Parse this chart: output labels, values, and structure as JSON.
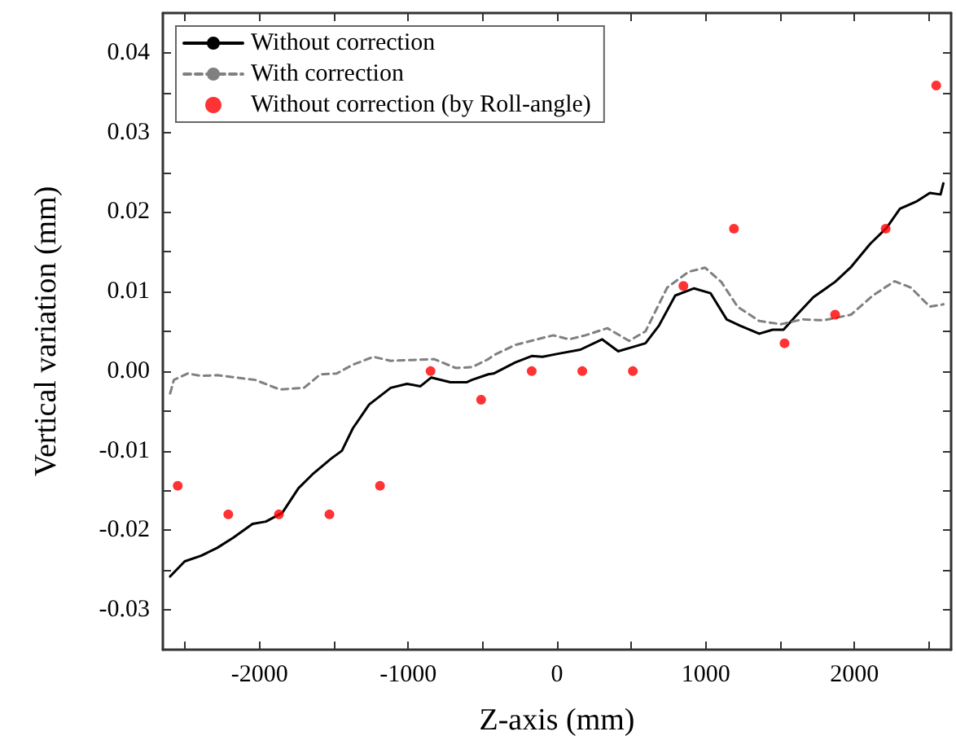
{
  "chart_data": {
    "type": "line",
    "xlabel": "Z-axis (mm)",
    "ylabel": "Vertical variation (mm)",
    "xlim": [
      -2650,
      2650
    ],
    "xticks": [
      {
        "value": -2500,
        "label": null
      },
      -2000,
      {
        "value": -1500,
        "label": null
      },
      -1000,
      {
        "value": -500,
        "label": null
      },
      0,
      {
        "value": 500,
        "label": null
      },
      1000,
      {
        "value": 1500,
        "label": null
      },
      2000,
      {
        "value": 2500,
        "label": null
      }
    ],
    "ylim": [
      -0.035,
      0.045
    ],
    "yticks": [
      {
        "value": -0.03,
        "label": "-0.03"
      },
      {
        "value": -0.025,
        "label": null
      },
      {
        "value": -0.02,
        "label": "-0.02"
      },
      {
        "value": -0.015,
        "label": null
      },
      {
        "value": -0.01,
        "label": "-0.01"
      },
      {
        "value": -0.005,
        "label": null
      },
      {
        "value": 0,
        "label": "0.00"
      },
      {
        "value": 0.005,
        "label": null
      },
      {
        "value": 0.01,
        "label": "0.01"
      },
      {
        "value": 0.015,
        "label": null
      },
      {
        "value": 0.02,
        "label": "0.02"
      },
      {
        "value": 0.025,
        "label": null
      },
      {
        "value": 0.03,
        "label": "0.03"
      },
      {
        "value": 0.035,
        "label": null
      },
      {
        "value": 0.04,
        "label": "0.04"
      }
    ],
    "grid": false,
    "legend": "top left",
    "series": [
      {
        "name": "Without correction",
        "color": "#000000",
        "line_style": "solid",
        "marker": "none",
        "x": [
          -2601,
          -2503,
          -2393,
          -2284,
          -2175,
          -2047,
          -1957,
          -1847,
          -1738,
          -1646,
          -1519,
          -1446,
          -1373,
          -1263,
          -1118,
          -1009,
          -918,
          -845,
          -717,
          -608,
          -572,
          -462,
          -426,
          -280,
          -170,
          -97,
          11,
          157,
          303,
          412,
          521,
          595,
          685,
          795,
          922,
          1032,
          1141,
          1232,
          1360,
          1450,
          1523,
          1614,
          1724,
          1869,
          1978,
          2106,
          2216,
          2306,
          2415,
          2507,
          2579,
          2598
        ],
        "values": [
          -0.0258,
          -0.0239,
          -0.0232,
          -0.0222,
          -0.0209,
          -0.0192,
          -0.0189,
          -0.0178,
          -0.0147,
          -0.013,
          -0.011,
          -0.01,
          -0.0072,
          -0.0042,
          -0.0021,
          -0.0016,
          -0.0019,
          -0.0008,
          -0.0014,
          -0.0014,
          -0.0011,
          -0.0004,
          -0.0003,
          0.0011,
          0.0019,
          0.0018,
          0.0022,
          0.0027,
          0.004,
          0.0025,
          0.0031,
          0.0035,
          0.0057,
          0.0095,
          0.0104,
          0.0098,
          0.0065,
          0.0057,
          0.0047,
          0.0052,
          0.0052,
          0.0071,
          0.0093,
          0.0112,
          0.0131,
          0.016,
          0.018,
          0.0204,
          0.0213,
          0.0224,
          0.0222,
          0.0236
        ]
      },
      {
        "name": "With correction",
        "color": "#808080",
        "line_style": "dashed",
        "marker": "none",
        "x": [
          -2601,
          -2576,
          -2484,
          -2393,
          -2284,
          -2029,
          -1865,
          -1701,
          -1591,
          -1482,
          -1373,
          -1235,
          -1118,
          -972,
          -826,
          -681,
          -572,
          -462,
          -426,
          -280,
          -134,
          -25,
          81,
          190,
          339,
          485,
          595,
          741,
          886,
          996,
          1105,
          1214,
          1360,
          1505,
          1651,
          1796,
          1978,
          2124,
          2270,
          2379,
          2507,
          2598
        ],
        "values": [
          -0.0028,
          -0.0011,
          -0.0003,
          -0.0006,
          -0.0005,
          -0.0011,
          -0.0023,
          -0.0021,
          -0.0004,
          -0.0003,
          0.0008,
          0.0018,
          0.0013,
          0.0014,
          0.0015,
          0.0004,
          0.0005,
          0.0015,
          0.002,
          0.0033,
          0.004,
          0.0045,
          0.004,
          0.0045,
          0.0054,
          0.0038,
          0.005,
          0.0105,
          0.0125,
          0.013,
          0.0112,
          0.0081,
          0.0063,
          0.0059,
          0.0065,
          0.0064,
          0.0071,
          0.0095,
          0.0113,
          0.0105,
          0.0081,
          0.0084
        ]
      },
      {
        "name": "Without correction (by Roll-angle)",
        "type": "scatter",
        "color": "#ff0000",
        "marker": "circle",
        "x": [
          -2550,
          -2210,
          -1870,
          -1530,
          -1190,
          -850,
          -510,
          -170,
          170,
          510,
          850,
          1190,
          1530,
          1870,
          2210,
          2550
        ],
        "values": [
          -0.0144,
          -0.018,
          -0.018,
          -0.018,
          -0.0144,
          0,
          -0.0036,
          0,
          0,
          0,
          0.0107,
          0.0179,
          0.0035,
          0.0071,
          0.0179,
          0.0359
        ]
      }
    ]
  }
}
